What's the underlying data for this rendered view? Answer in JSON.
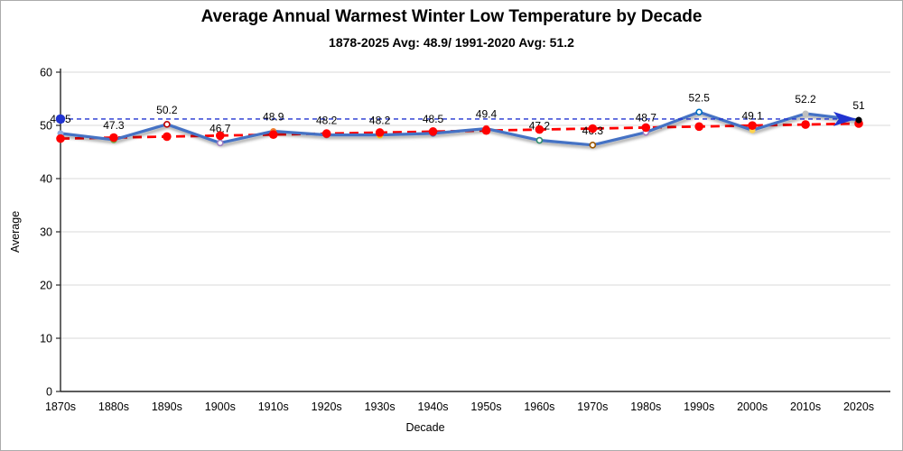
{
  "chart_data": {
    "type": "line",
    "title": "Average Annual Warmest Winter Low Temperature by Decade",
    "subtitle": "1878-2025 Avg: 48.9/ 1991-2020 Avg: 51.2",
    "xlabel": "Decade",
    "ylabel": "Average",
    "ylim": [
      0,
      60
    ],
    "yticks": [
      0,
      10,
      20,
      30,
      40,
      50,
      60
    ],
    "grid": true,
    "legend": "none",
    "categories": [
      "1870s",
      "1880s",
      "1890s",
      "1900s",
      "1910s",
      "1920s",
      "1930s",
      "1940s",
      "1950s",
      "1960s",
      "1970s",
      "1980s",
      "1990s",
      "2000s",
      "2010s",
      "2020s"
    ],
    "series": [
      {
        "name": "Decade average",
        "type": "line",
        "color": "#4472C4",
        "values": [
          48.5,
          47.3,
          50.2,
          46.7,
          48.9,
          48.2,
          48.2,
          48.5,
          49.4,
          47.2,
          46.3,
          48.7,
          52.5,
          49.1,
          52.2,
          51
        ],
        "labels": [
          "48.5",
          "47.3",
          "50.2",
          "46.7",
          "48.9",
          "48.2",
          "48.2",
          "48.5",
          "49.4",
          "47.2",
          "46.3",
          "48.7",
          "52.5",
          "49.1",
          "52.2",
          "51"
        ],
        "point_marker_colors": [
          "#8FAADC",
          "#70AD47",
          "#C00000",
          "#9E7CC3",
          "#ED7D31",
          "#7F7F7F",
          "#FFC000",
          "#4472C4",
          "#FF2222",
          "#2E8B6E",
          "#9C5700",
          "#9E7CC3",
          "#0070C0",
          "#FFD34D",
          "#BFBFBF",
          "#000000"
        ],
        "point_marker_filled": [
          true,
          false,
          false,
          false,
          true,
          false,
          false,
          false,
          false,
          false,
          false,
          false,
          false,
          true,
          true,
          true
        ]
      },
      {
        "name": "Linear trend",
        "type": "trendline",
        "color": "#FF0000",
        "dashed": true,
        "marker": "dot"
      },
      {
        "name": "1991-2020 average reference",
        "type": "reference_line",
        "value": 51.2,
        "color": "#2133D1",
        "dashed": true,
        "start_marker": "circle",
        "end_marker": "arrow"
      }
    ],
    "axis_color": "#262626",
    "gridline_color": "#D9D9D9",
    "label_color": "#000000"
  }
}
